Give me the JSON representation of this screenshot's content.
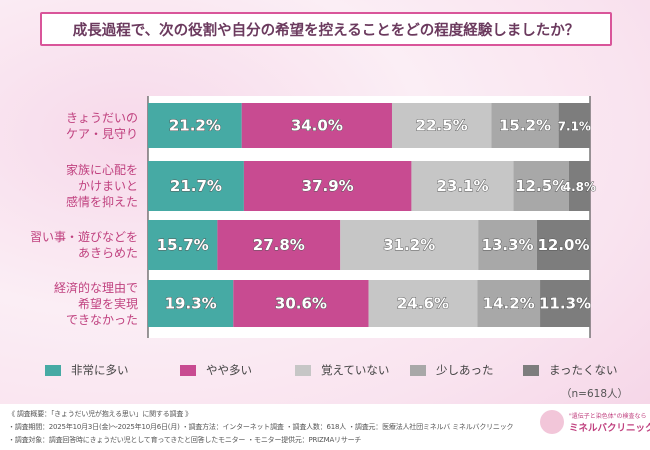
{
  "title": "成長過程で、次の役割や自分の希望を控えることをどの程度経験しましたか？",
  "chart_data": {
    "type": "bar",
    "orientation": "horizontal",
    "stacked": true,
    "unit": "%",
    "categories": [
      "きょうだいの\nケア・見守り",
      "家族に心配を\nかけまいと\n感情を抑えた",
      "習い事・遊びなどを\nあきらめた",
      "経済的な理由で\n希望を実現\nできなかった"
    ],
    "series": [
      {
        "name": "非常に多い",
        "color": "#46aaa4",
        "values": [
          21.2,
          21.7,
          15.7,
          19.3
        ]
      },
      {
        "name": "やや多い",
        "color": "#c84b91",
        "values": [
          34.0,
          37.9,
          27.8,
          30.6
        ]
      },
      {
        "name": "覚えていない",
        "color": "#c6c6c6",
        "values": [
          22.5,
          23.1,
          31.2,
          24.6
        ]
      },
      {
        "name": "少しあった",
        "color": "#a8a8a8",
        "values": [
          15.2,
          12.5,
          13.3,
          14.2
        ]
      },
      {
        "name": "まったくない",
        "color": "#7d7d7d",
        "values": [
          7.1,
          4.8,
          12.0,
          11.3
        ]
      }
    ],
    "legend_position": "bottom",
    "data_labels": [
      "21.2%",
      "34.0%",
      "22.5%",
      "15.2%",
      "7.1%",
      "21.7%",
      "37.9%",
      "23.1%",
      "12.5%",
      "4.8%",
      "15.7%",
      "27.8%",
      "31.2%",
      "13.3%",
      "12.0%",
      "19.3%",
      "30.6%",
      "24.6%",
      "14.2%",
      "11.3%"
    ]
  },
  "n_label": "（n=618人）",
  "footer": {
    "line1": "《 調査概要：「きょうだい児が抱える思い」に関する調査 》",
    "line2": "・調査期間：2025年10月3日(金)～2025年10月6日(月) ・調査方法：インターネット調査 ・調査人数：618人 ・調査元：医療法人社団ミネルバ ミネルバクリニック",
    "line3": "・調査対象：調査回答時にきょうだい児として育ってきたと回答したモニター ・モニター提供元：PRIZMAリサーチ"
  },
  "logo": {
    "tagline": "\"遺伝子と染色体\"の検査なら",
    "name": "ミネルバクリニック"
  }
}
